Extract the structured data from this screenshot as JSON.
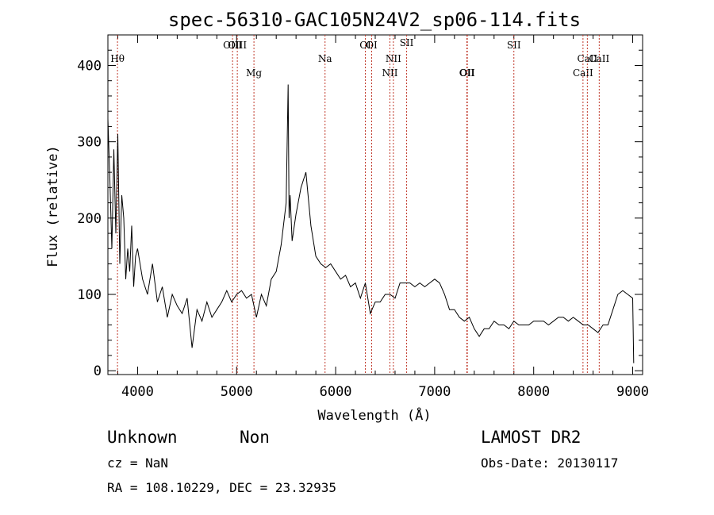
{
  "chart_data": {
    "type": "line",
    "title": "spec-56310-GAC105N24V2_sp06-114.fits",
    "xlabel": "Wavelength (Å)",
    "ylabel": "Flux (relative)",
    "xlim": [
      3700,
      9100
    ],
    "ylim": [
      -5,
      440
    ],
    "x_ticks": [
      4000,
      5000,
      6000,
      7000,
      8000,
      9000
    ],
    "y_ticks": [
      0,
      100,
      200,
      300,
      400
    ],
    "grid": false,
    "lines": [
      {
        "name": "Hθ",
        "x": 3797,
        "row": 1
      },
      {
        "name": "OIII",
        "x": 4959,
        "row": 0
      },
      {
        "name": "OIII",
        "x": 5007,
        "row": 0
      },
      {
        "name": "Mg",
        "x": 5175,
        "row": 2
      },
      {
        "name": "Na",
        "x": 5893,
        "row": 1
      },
      {
        "name": "OI",
        "x": 6300,
        "row": 0
      },
      {
        "name": "OI",
        "x": 6364,
        "row": 0
      },
      {
        "name": "NII",
        "x": 6548,
        "row": 2
      },
      {
        "name": "NII",
        "x": 6583,
        "row": 1
      },
      {
        "name": "OII",
        "x": 7325,
        "row": 2
      },
      {
        "name": "OII",
        "x": 7330,
        "row": 2
      },
      {
        "name": "SII",
        "x": 6717,
        "row": -1
      },
      {
        "name": "SII",
        "x": 7800,
        "row": 0
      },
      {
        "name": "CaII",
        "x": 8498,
        "row": 2
      },
      {
        "name": "CaII",
        "x": 8542,
        "row": 1
      },
      {
        "name": "CaII",
        "x": 8662,
        "row": 1
      }
    ],
    "spectrum": {
      "x": [
        3700,
        3720,
        3740,
        3760,
        3780,
        3800,
        3820,
        3840,
        3860,
        3880,
        3900,
        3920,
        3940,
        3960,
        3980,
        4000,
        4050,
        4100,
        4150,
        4200,
        4250,
        4300,
        4350,
        4400,
        4450,
        4500,
        4550,
        4600,
        4650,
        4700,
        4750,
        4800,
        4850,
        4900,
        4950,
        5000,
        5050,
        5100,
        5150,
        5200,
        5250,
        5300,
        5350,
        5400,
        5450,
        5500,
        5520,
        5530,
        5540,
        5560,
        5600,
        5650,
        5700,
        5750,
        5800,
        5850,
        5900,
        5950,
        6000,
        6050,
        6100,
        6150,
        6200,
        6250,
        6300,
        6350,
        6400,
        6450,
        6500,
        6550,
        6600,
        6650,
        6700,
        6750,
        6800,
        6850,
        6900,
        6950,
        7000,
        7050,
        7100,
        7150,
        7200,
        7250,
        7300,
        7350,
        7400,
        7450,
        7500,
        7550,
        7600,
        7650,
        7700,
        7750,
        7800,
        7850,
        7900,
        7950,
        8000,
        8050,
        8100,
        8150,
        8200,
        8250,
        8300,
        8350,
        8400,
        8450,
        8500,
        8550,
        8600,
        8650,
        8700,
        8750,
        8800,
        8850,
        8900,
        8950,
        9000,
        9010
      ],
      "y": [
        330,
        250,
        160,
        290,
        180,
        310,
        140,
        230,
        200,
        120,
        160,
        130,
        190,
        110,
        150,
        160,
        120,
        100,
        140,
        90,
        110,
        70,
        100,
        85,
        75,
        95,
        30,
        80,
        65,
        90,
        70,
        80,
        90,
        105,
        90,
        100,
        105,
        95,
        100,
        70,
        100,
        85,
        120,
        130,
        165,
        220,
        375,
        200,
        230,
        170,
        205,
        240,
        260,
        190,
        150,
        140,
        135,
        140,
        130,
        120,
        125,
        110,
        115,
        95,
        115,
        75,
        90,
        90,
        100,
        100,
        95,
        115,
        115,
        115,
        110,
        115,
        110,
        115,
        120,
        115,
        100,
        80,
        80,
        70,
        65,
        70,
        55,
        45,
        55,
        55,
        65,
        60,
        60,
        55,
        65,
        60,
        60,
        60,
        65,
        65,
        65,
        60,
        65,
        70,
        70,
        65,
        70,
        65,
        60,
        60,
        55,
        50,
        60,
        60,
        80,
        100,
        105,
        100,
        95,
        10
      ]
    }
  },
  "info": {
    "class": "Unknown",
    "subclass": "Non",
    "survey": "LAMOST DR2",
    "cz": "cz = NaN",
    "obs_date": "Obs-Date: 20130117",
    "coords": "RA = 108.10229, DEC =  23.32935"
  }
}
